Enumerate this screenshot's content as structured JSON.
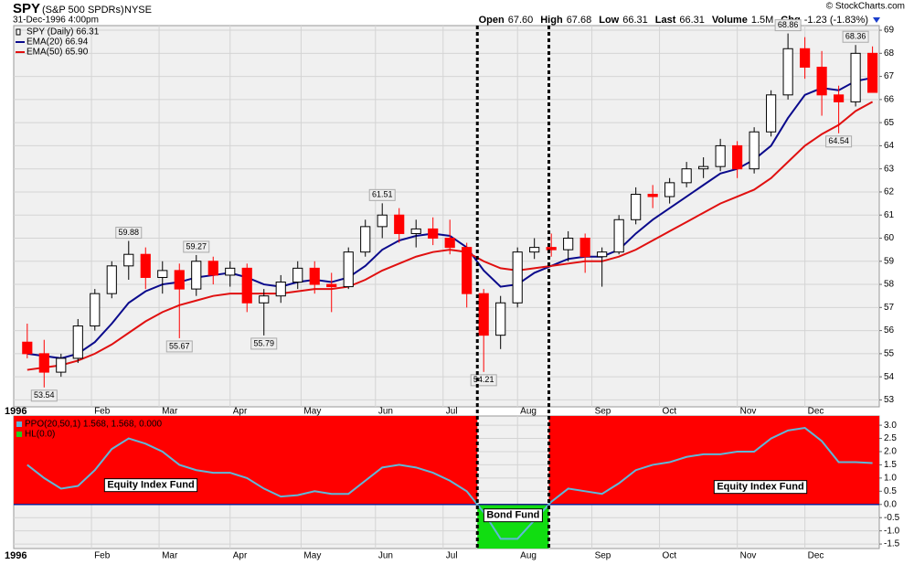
{
  "header": {
    "symbol": "SPY",
    "name": "(S&P 500 SPDRs)",
    "exchange": "NYSE",
    "datetime": "31-Dec-1996 4:00pm",
    "copyright": "© StockCharts.com",
    "quote": [
      {
        "label": "Open",
        "value": "67.60"
      },
      {
        "label": "High",
        "value": "67.68"
      },
      {
        "label": "Low",
        "value": "66.31"
      },
      {
        "label": "Last",
        "value": "66.31"
      },
      {
        "label": "Volume",
        "value": "1.5M"
      },
      {
        "label": "Chg",
        "value": "-1.23 (-1.83%)"
      }
    ]
  },
  "chart_data": [
    {
      "type": "candlestick",
      "x": [
        2,
        7,
        12,
        17,
        22,
        27,
        32,
        37,
        42,
        47,
        52,
        57,
        62,
        67,
        72,
        77,
        82,
        87,
        92,
        97,
        102,
        107,
        112,
        117,
        122,
        127,
        132,
        137,
        142,
        147,
        152,
        157,
        162,
        167,
        172,
        177,
        182,
        187,
        192,
        197,
        202,
        207,
        212,
        217,
        222,
        227,
        232,
        237,
        242,
        247,
        252
      ],
      "series": [
        {
          "name": "SPY (Daily) 66.31",
          "type": "candlestick",
          "up_color": "#000000",
          "down_color": "#ff0000",
          "open": [
            55.5,
            55.0,
            54.2,
            54.8,
            56.2,
            57.6,
            58.8,
            59.3,
            58.3,
            58.6,
            57.8,
            59.0,
            58.4,
            58.7,
            57.2,
            57.5,
            58.1,
            58.7,
            58.0,
            57.9,
            59.4,
            60.5,
            61.0,
            60.2,
            60.4,
            60.0,
            59.6,
            57.6,
            55.8,
            57.2,
            59.4,
            59.6,
            59.5,
            60.0,
            59.2,
            59.4,
            60.8,
            61.9,
            61.8,
            62.4,
            63.0,
            63.1,
            64.0,
            63.0,
            64.6,
            66.2,
            68.2,
            67.4,
            66.2,
            65.9,
            68.0
          ],
          "high": [
            56.3,
            55.6,
            55.0,
            56.5,
            57.8,
            59.0,
            59.88,
            59.6,
            59.0,
            58.9,
            59.27,
            59.2,
            59.0,
            58.9,
            57.8,
            58.4,
            59.0,
            59.0,
            58.5,
            59.6,
            60.8,
            61.51,
            61.3,
            60.8,
            60.9,
            60.8,
            59.8,
            57.8,
            57.5,
            59.6,
            60.0,
            60.2,
            60.3,
            60.2,
            59.6,
            61.0,
            62.2,
            62.3,
            62.6,
            63.3,
            63.5,
            64.3,
            64.2,
            64.8,
            66.4,
            68.86,
            68.7,
            68.1,
            66.6,
            68.36,
            68.3
          ],
          "low": [
            54.8,
            53.54,
            54.0,
            54.6,
            56.0,
            57.4,
            58.2,
            57.8,
            57.6,
            55.67,
            57.5,
            58.0,
            57.9,
            56.8,
            55.79,
            57.2,
            57.8,
            57.6,
            56.8,
            57.8,
            59.2,
            60.0,
            59.8,
            59.6,
            59.7,
            59.3,
            57.0,
            54.21,
            55.2,
            57.0,
            59.1,
            59.2,
            59.0,
            58.5,
            57.9,
            59.3,
            60.6,
            61.3,
            61.5,
            62.2,
            62.6,
            62.9,
            62.6,
            62.8,
            64.4,
            66.0,
            66.9,
            65.3,
            64.54,
            65.7,
            66.31
          ],
          "close": [
            55.0,
            54.2,
            54.8,
            56.2,
            57.6,
            58.8,
            59.3,
            58.3,
            58.6,
            57.8,
            59.0,
            58.4,
            58.7,
            57.2,
            57.5,
            58.1,
            58.7,
            58.0,
            57.9,
            59.4,
            60.5,
            61.0,
            60.2,
            60.4,
            60.0,
            59.6,
            57.6,
            55.8,
            57.2,
            59.4,
            59.6,
            59.5,
            60.0,
            59.2,
            59.4,
            60.8,
            61.9,
            61.8,
            62.4,
            63.0,
            63.1,
            64.0,
            63.0,
            64.6,
            66.2,
            68.2,
            67.4,
            66.2,
            65.9,
            68.0,
            66.31
          ]
        },
        {
          "name": "EMA(20) 66.94",
          "type": "line",
          "color": "#0a0a8c",
          "values": [
            55.0,
            54.9,
            54.8,
            55.0,
            55.5,
            56.3,
            57.2,
            57.7,
            58.0,
            58.1,
            58.3,
            58.4,
            58.5,
            58.3,
            58.0,
            57.9,
            58.1,
            58.2,
            58.1,
            58.3,
            58.8,
            59.5,
            59.9,
            60.1,
            60.2,
            60.1,
            59.6,
            58.6,
            57.9,
            58.0,
            58.5,
            58.8,
            59.1,
            59.2,
            59.2,
            59.5,
            60.2,
            60.8,
            61.3,
            61.8,
            62.3,
            62.8,
            63.0,
            63.4,
            64.0,
            65.2,
            66.2,
            66.5,
            66.4,
            66.8,
            66.94
          ]
        },
        {
          "name": "EMA(50) 65.90",
          "type": "line",
          "color": "#e01010",
          "values": [
            54.3,
            54.4,
            54.5,
            54.7,
            55.0,
            55.4,
            55.9,
            56.4,
            56.8,
            57.1,
            57.3,
            57.5,
            57.6,
            57.6,
            57.6,
            57.6,
            57.7,
            57.8,
            57.8,
            57.9,
            58.2,
            58.6,
            58.9,
            59.2,
            59.4,
            59.5,
            59.4,
            59.0,
            58.7,
            58.6,
            58.7,
            58.8,
            58.9,
            59.0,
            59.0,
            59.2,
            59.5,
            59.9,
            60.3,
            60.7,
            61.1,
            61.5,
            61.8,
            62.1,
            62.6,
            63.3,
            64.0,
            64.5,
            64.9,
            65.5,
            65.9
          ]
        }
      ],
      "xlim": [
        -2,
        254
      ],
      "xticks": [
        {
          "value": 0,
          "label": "1996"
        },
        {
          "value": 21,
          "label": "Feb"
        },
        {
          "value": 41,
          "label": "Mar"
        },
        {
          "value": 62,
          "label": "Apr"
        },
        {
          "value": 83,
          "label": "May"
        },
        {
          "value": 105,
          "label": "Jun"
        },
        {
          "value": 125,
          "label": "Jul"
        },
        {
          "value": 147,
          "label": "Aug"
        },
        {
          "value": 169,
          "label": "Sep"
        },
        {
          "value": 189,
          "label": "Oct"
        },
        {
          "value": 212,
          "label": "Nov"
        },
        {
          "value": 232,
          "label": "Dec"
        }
      ],
      "ylim": [
        52.7,
        69.2
      ],
      "yticks": [
        53,
        54,
        55,
        56,
        57,
        58,
        59,
        60,
        61,
        62,
        63,
        64,
        65,
        66,
        67,
        68,
        69
      ],
      "grid": true,
      "legend": "top-left"
    },
    {
      "type": "line",
      "x": [
        2,
        7,
        12,
        17,
        22,
        27,
        32,
        37,
        42,
        47,
        52,
        57,
        62,
        67,
        72,
        77,
        82,
        87,
        92,
        97,
        102,
        107,
        112,
        117,
        122,
        127,
        132,
        137,
        142,
        147,
        152,
        157,
        162,
        167,
        172,
        177,
        182,
        187,
        192,
        197,
        202,
        207,
        212,
        217,
        222,
        227,
        232,
        237,
        242,
        247,
        252
      ],
      "series": [
        {
          "name": "PPO(20,50,1) 1.568, 1.568, 0.000",
          "color": "#5fb8d8",
          "values": [
            1.5,
            1.0,
            0.6,
            0.7,
            1.3,
            2.1,
            2.5,
            2.3,
            2.0,
            1.5,
            1.3,
            1.2,
            1.2,
            1.0,
            0.6,
            0.3,
            0.35,
            0.5,
            0.4,
            0.4,
            0.9,
            1.4,
            1.5,
            1.4,
            1.2,
            0.9,
            0.5,
            -0.3,
            -1.3,
            -1.3,
            -0.6,
            0.1,
            0.6,
            0.5,
            0.4,
            0.8,
            1.3,
            1.5,
            1.6,
            1.8,
            1.9,
            1.9,
            2.0,
            2.0,
            2.5,
            2.8,
            2.9,
            2.4,
            1.6,
            1.6,
            1.568
          ]
        },
        {
          "name": "HL(0.0)",
          "color": "#1a1a8c",
          "value": 0
        }
      ],
      "positive_fill": "#ff0000",
      "negative_fill": "#11dd11",
      "annotations": [
        "Equity Index Fund",
        "Bond Fund",
        "Equity Index Fund"
      ],
      "xlim": [
        -2,
        254
      ],
      "xticks": [
        {
          "value": 0,
          "label": "1996"
        },
        {
          "value": 21,
          "label": "Feb"
        },
        {
          "value": 41,
          "label": "Mar"
        },
        {
          "value": 62,
          "label": "Apr"
        },
        {
          "value": 83,
          "label": "May"
        },
        {
          "value": 105,
          "label": "Jun"
        },
        {
          "value": 125,
          "label": "Jul"
        },
        {
          "value": 147,
          "label": "Aug"
        },
        {
          "value": 169,
          "label": "Sep"
        },
        {
          "value": 189,
          "label": "Oct"
        },
        {
          "value": 212,
          "label": "Nov"
        },
        {
          "value": 232,
          "label": "Dec"
        }
      ],
      "ylim": [
        -1.67,
        3.35
      ],
      "yticks": [
        {
          "value": -1.5,
          "label": "-1.5"
        },
        {
          "value": -1,
          "label": "-1.0"
        },
        {
          "value": -0.5,
          "label": "-0.5"
        },
        {
          "value": 0,
          "label": "0.0"
        },
        {
          "value": 0.5,
          "label": "0.5"
        },
        {
          "value": 1,
          "label": "1.0"
        },
        {
          "value": 1.5,
          "label": "1.5"
        },
        {
          "value": 2,
          "label": "2.0"
        },
        {
          "value": 2.5,
          "label": "2.5"
        },
        {
          "value": 3,
          "label": "3.0"
        }
      ],
      "grid": true,
      "legend": "top-left"
    }
  ]
}
